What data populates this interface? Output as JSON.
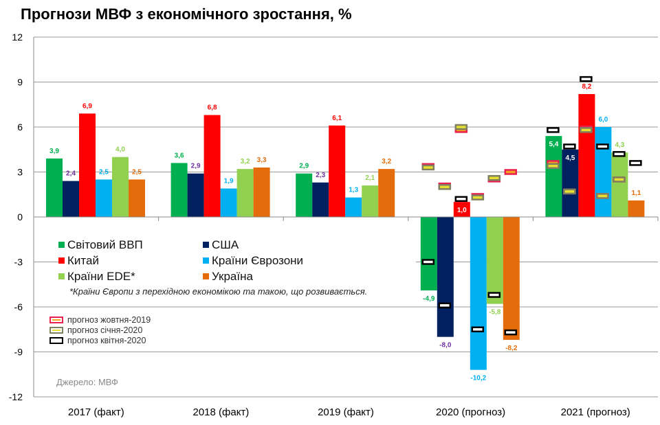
{
  "title": "Прогнози МВФ з економічного зростання, %",
  "chart_data": {
    "type": "bar",
    "title": "Прогнози МВФ з економічного зростання, %",
    "categories": [
      "2017 (факт)",
      "2018 (факт)",
      "2019 (факт)",
      "2020 (прогноз)",
      "2021 (прогноз)"
    ],
    "ylim": [
      -12,
      12
    ],
    "yticks": [
      "12",
      "9",
      "6",
      "3",
      "0",
      "-3",
      "-6",
      "-9",
      "-12"
    ],
    "grid": true,
    "series": [
      {
        "name": "Світовий ВВП",
        "color": "#00b050",
        "values": [
          3.9,
          3.6,
          2.9,
          -4.9,
          5.4
        ],
        "labels": [
          "3,9",
          "3,6",
          "2,9",
          "-4,9",
          "5,4"
        ],
        "label_color": "#00b050"
      },
      {
        "name": "США",
        "color": "#002060",
        "values": [
          2.4,
          2.9,
          2.3,
          -8.0,
          4.5
        ],
        "labels": [
          "2,4",
          "2,9",
          "2,3",
          "-8,0",
          "4,5"
        ],
        "label_color": "#7030a0"
      },
      {
        "name": "Китай",
        "color": "#ff0000",
        "values": [
          6.9,
          6.8,
          6.1,
          1.0,
          8.2
        ],
        "labels": [
          "6,9",
          "6,8",
          "6,1",
          "1,0",
          "8,2"
        ],
        "label_color": "#ff0000"
      },
      {
        "name": "Країни Єврозони",
        "color": "#00b0f0",
        "values": [
          2.5,
          1.9,
          1.3,
          -10.2,
          6.0
        ],
        "labels": [
          "2,5",
          "1,9",
          "1,3",
          "-10,2",
          "6,0"
        ],
        "label_color": "#00b0f0"
      },
      {
        "name": "Країни EDE*",
        "color": "#92d050",
        "values": [
          4.0,
          3.2,
          2.1,
          -5.8,
          4.3
        ],
        "labels": [
          "4,0",
          "3,2",
          "2,1",
          "-5,8",
          "4,3"
        ],
        "label_color": "#92d050"
      },
      {
        "name": "Україна",
        "color": "#e46c0a",
        "values": [
          2.5,
          3.3,
          3.2,
          -8.2,
          1.1
        ],
        "labels": [
          "2,5",
          "3,3",
          "3,2",
          "-8,2",
          "1,1"
        ],
        "label_color": "#e46c0a"
      }
    ],
    "forecast_markers": [
      {
        "name": "прогноз жовтня-2019",
        "border": "#e8204f",
        "fill": "#f4a020",
        "values": {
          "2020 (прогноз)": [
            3.4,
            2.1,
            5.8,
            1.4,
            2.5,
            3.0
          ],
          "2021 (прогноз)": [
            3.6,
            1.7,
            5.9,
            1.4,
            2.5,
            null
          ]
        }
      },
      {
        "name": "прогноз січня-2020",
        "border": "#808060",
        "fill": "#e8e030",
        "values": {
          "2020 (прогноз)": [
            3.3,
            2.0,
            6.0,
            1.3,
            2.6,
            null
          ],
          "2021 (прогноз)": [
            3.4,
            1.7,
            5.8,
            1.4,
            2.5,
            null
          ]
        }
      },
      {
        "name": "прогноз квітня-2020",
        "border": "#000000",
        "fill": "#ffffff",
        "values": {
          "2020 (прогноз)": [
            -3.0,
            -5.9,
            1.2,
            -7.5,
            -5.2,
            -7.7
          ],
          "2021 (прогноз)": [
            5.8,
            4.7,
            9.2,
            4.7,
            4.2,
            3.6
          ]
        }
      }
    ],
    "footnote": "*Країни Європи з перехідною економікою та такою, що розвивається.",
    "source": "Джерело: МВФ"
  }
}
